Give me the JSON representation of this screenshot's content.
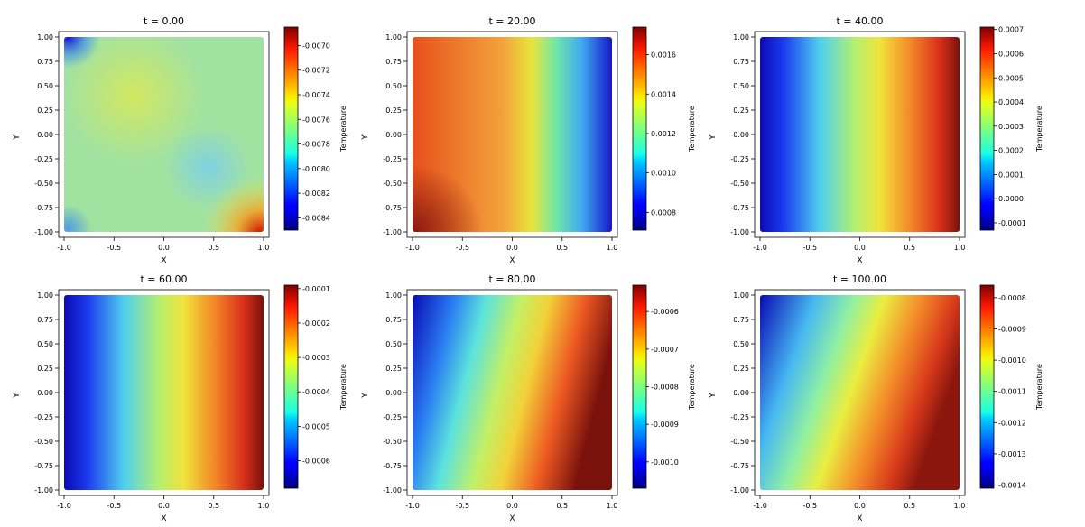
{
  "chart_data": [
    {
      "type": "heatmap",
      "title": "t = 0.00",
      "xlabel": "X",
      "ylabel": "Y",
      "colorbar_label": "Temperature",
      "xlim": [
        -1.0,
        1.0
      ],
      "ylim": [
        -1.0,
        1.0
      ],
      "xticks": [
        "-1.0",
        "-0.5",
        "0.0",
        "0.5",
        "1.0"
      ],
      "yticks": [
        "1.00",
        "0.75",
        "0.50",
        "0.25",
        "0.00",
        "-0.25",
        "-0.50",
        "-0.75",
        "-1.00"
      ],
      "colorbar_range": [
        -0.0085,
        -0.00685
      ],
      "colorbar_ticks": [
        "-0.0070",
        "-0.0072",
        "-0.0074",
        "-0.0076",
        "-0.0078",
        "-0.0080",
        "-0.0082",
        "-0.0084"
      ],
      "colormap": "jet"
    },
    {
      "type": "heatmap",
      "title": "t = 20.00",
      "xlabel": "X",
      "ylabel": "Y",
      "colorbar_label": "Temperature",
      "xlim": [
        -1.0,
        1.0
      ],
      "ylim": [
        -1.0,
        1.0
      ],
      "xticks": [
        "-1.0",
        "-0.5",
        "0.0",
        "0.5",
        "1.0"
      ],
      "yticks": [
        "1.00",
        "0.75",
        "0.50",
        "0.25",
        "0.00",
        "-0.25",
        "-0.50",
        "-0.75",
        "-1.00"
      ],
      "colorbar_range": [
        0.00071,
        0.00174
      ],
      "colorbar_ticks": [
        "0.0016",
        "0.0014",
        "0.0012",
        "0.0010",
        "0.0008"
      ],
      "colormap": "jet"
    },
    {
      "type": "heatmap",
      "title": "t = 40.00",
      "xlabel": "X",
      "ylabel": "Y",
      "colorbar_label": "Temperature",
      "xlim": [
        -1.0,
        1.0
      ],
      "ylim": [
        -1.0,
        1.0
      ],
      "xticks": [
        "-1.0",
        "-0.5",
        "0.0",
        "0.5",
        "1.0"
      ],
      "yticks": [
        "1.00",
        "0.75",
        "0.50",
        "0.25",
        "0.00",
        "-0.25",
        "-0.50",
        "-0.75",
        "-1.00"
      ],
      "colorbar_range": [
        -0.00013,
        0.00071
      ],
      "colorbar_ticks": [
        "0.0007",
        "0.0006",
        "0.0005",
        "0.0004",
        "0.0003",
        "0.0002",
        "0.0001",
        "0.0000",
        "-0.0001"
      ],
      "colormap": "jet"
    },
    {
      "type": "heatmap",
      "title": "t = 60.00",
      "xlabel": "X",
      "ylabel": "Y",
      "colorbar_label": "Temperature",
      "xlim": [
        -1.0,
        1.0
      ],
      "ylim": [
        -1.0,
        1.0
      ],
      "xticks": [
        "-1.0",
        "-0.5",
        "0.0",
        "0.5",
        "1.0"
      ],
      "yticks": [
        "1.00",
        "0.75",
        "0.50",
        "0.25",
        "0.00",
        "-0.25",
        "-0.50",
        "-0.75",
        "-1.00"
      ],
      "colorbar_range": [
        -0.00068,
        -9e-05
      ],
      "colorbar_ticks": [
        "-0.0001",
        "-0.0002",
        "-0.0003",
        "-0.0004",
        "-0.0005",
        "-0.0006"
      ],
      "colormap": "jet"
    },
    {
      "type": "heatmap",
      "title": "t = 80.00",
      "xlabel": "X",
      "ylabel": "Y",
      "colorbar_label": "Temperature",
      "xlim": [
        -1.0,
        1.0
      ],
      "ylim": [
        -1.0,
        1.0
      ],
      "xticks": [
        "-1.0",
        "-0.5",
        "0.0",
        "0.5",
        "1.0"
      ],
      "yticks": [
        "1.00",
        "0.75",
        "0.50",
        "0.25",
        "0.00",
        "-0.25",
        "-0.50",
        "-0.75",
        "-1.00"
      ],
      "colorbar_range": [
        -0.00107,
        -0.00053
      ],
      "colorbar_ticks": [
        "-0.0006",
        "-0.0007",
        "-0.0008",
        "-0.0009",
        "-0.0010"
      ],
      "colormap": "jet"
    },
    {
      "type": "heatmap",
      "title": "t = 100.00",
      "xlabel": "X",
      "ylabel": "Y",
      "colorbar_label": "Temperature",
      "xlim": [
        -1.0,
        1.0
      ],
      "ylim": [
        -1.0,
        1.0
      ],
      "xticks": [
        "-1.0",
        "-0.5",
        "0.0",
        "0.5",
        "1.0"
      ],
      "yticks": [
        "1.00",
        "0.75",
        "0.50",
        "0.25",
        "0.00",
        "-0.25",
        "-0.50",
        "-0.75",
        "-1.00"
      ],
      "colorbar_range": [
        -0.00141,
        -0.00076
      ],
      "colorbar_ticks": [
        "-0.0008",
        "-0.0009",
        "-0.0010",
        "-0.0011",
        "-0.0012",
        "-0.0013",
        "-0.0014"
      ],
      "colormap": "jet"
    }
  ]
}
